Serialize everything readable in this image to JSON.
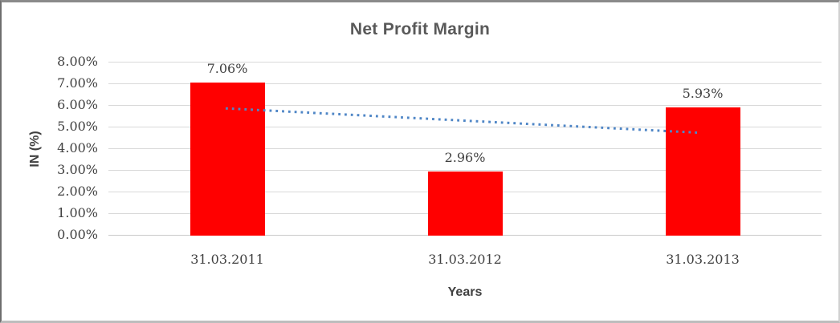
{
  "chart_data": {
    "type": "bar",
    "title": "Net Profit Margin",
    "xlabel": "Years",
    "ylabel": "IN (%)",
    "categories": [
      "31.03.2011",
      "31.03.2012",
      "31.03.2013"
    ],
    "series": [
      {
        "name": "Net Profit Margin",
        "values": [
          7.06,
          2.96,
          5.93
        ]
      }
    ],
    "data_labels": [
      "7.06%",
      "2.96%",
      "5.93%"
    ],
    "ylim": [
      0,
      8
    ],
    "ytick_step": 1,
    "ytick_labels": [
      "0.00%",
      "1.00%",
      "2.00%",
      "3.00%",
      "4.00%",
      "5.00%",
      "6.00%",
      "7.00%",
      "8.00%"
    ],
    "grid": true,
    "legend": false,
    "trendline": {
      "type": "linear",
      "style": "dotted"
    }
  },
  "colors": {
    "bar": "#FF0000",
    "trendline": "#4F86C6",
    "gridline": "#D9D9D9",
    "baseline": "#C9C9C9",
    "tick_text": "#404040",
    "label_text": "#404040",
    "title_text": "#595959",
    "axis_title_text": "#404040",
    "background": "#FFFFFF"
  }
}
